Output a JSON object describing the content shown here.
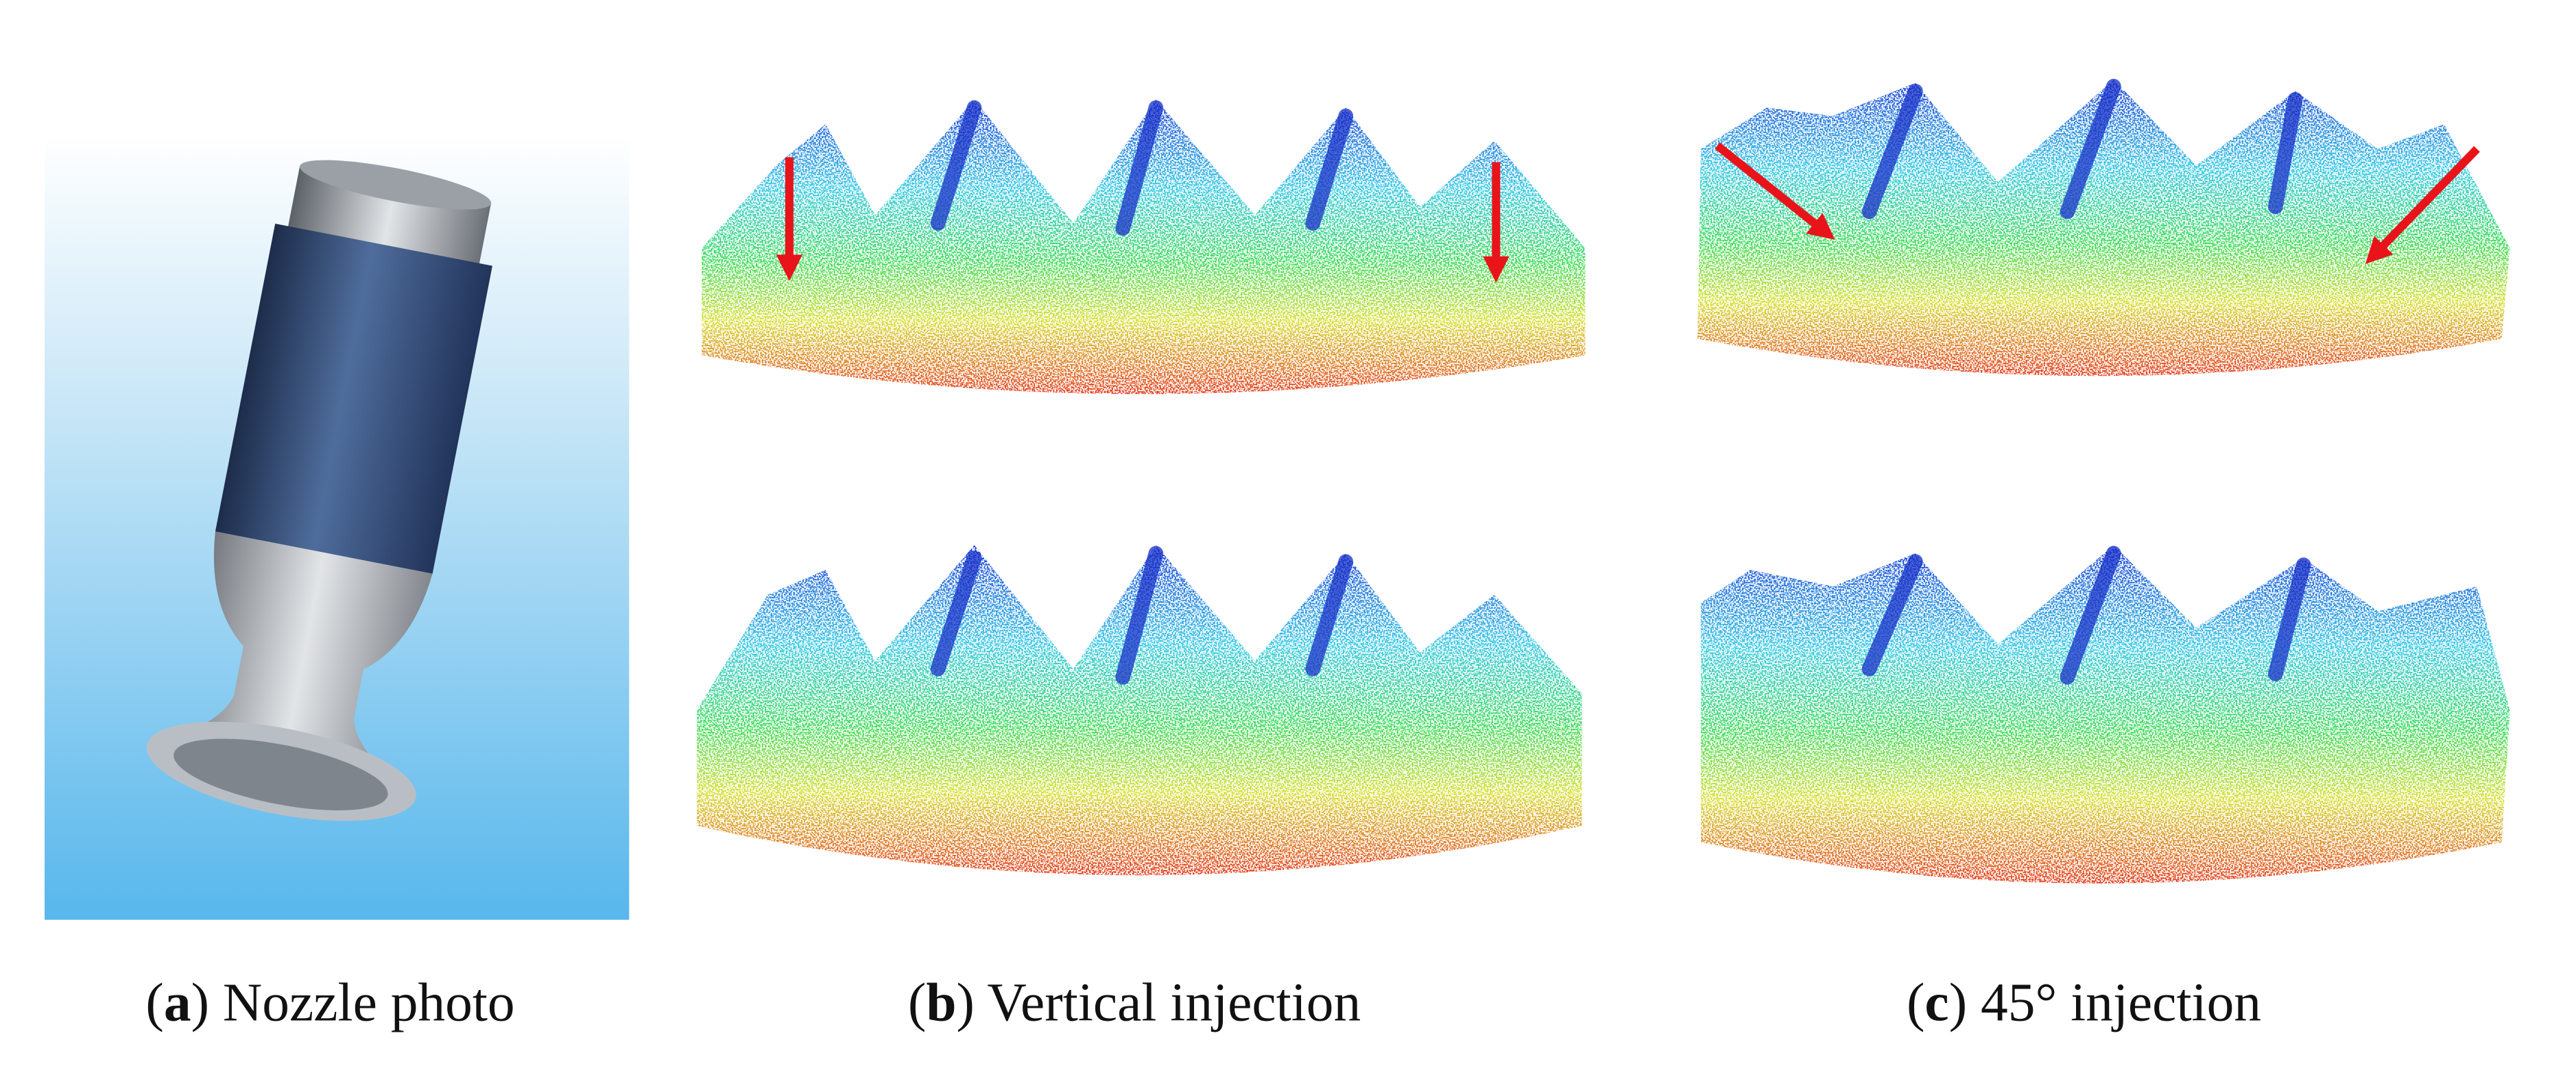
{
  "panels": [
    {
      "caption_parts": [
        "(",
        "a",
        ") Nozzle photo"
      ]
    },
    {
      "caption_parts": [
        "(",
        "b",
        ") Vertical injection"
      ]
    },
    {
      "caption_parts": [
        "(",
        "c",
        ") 45° injection"
      ]
    }
  ]
}
